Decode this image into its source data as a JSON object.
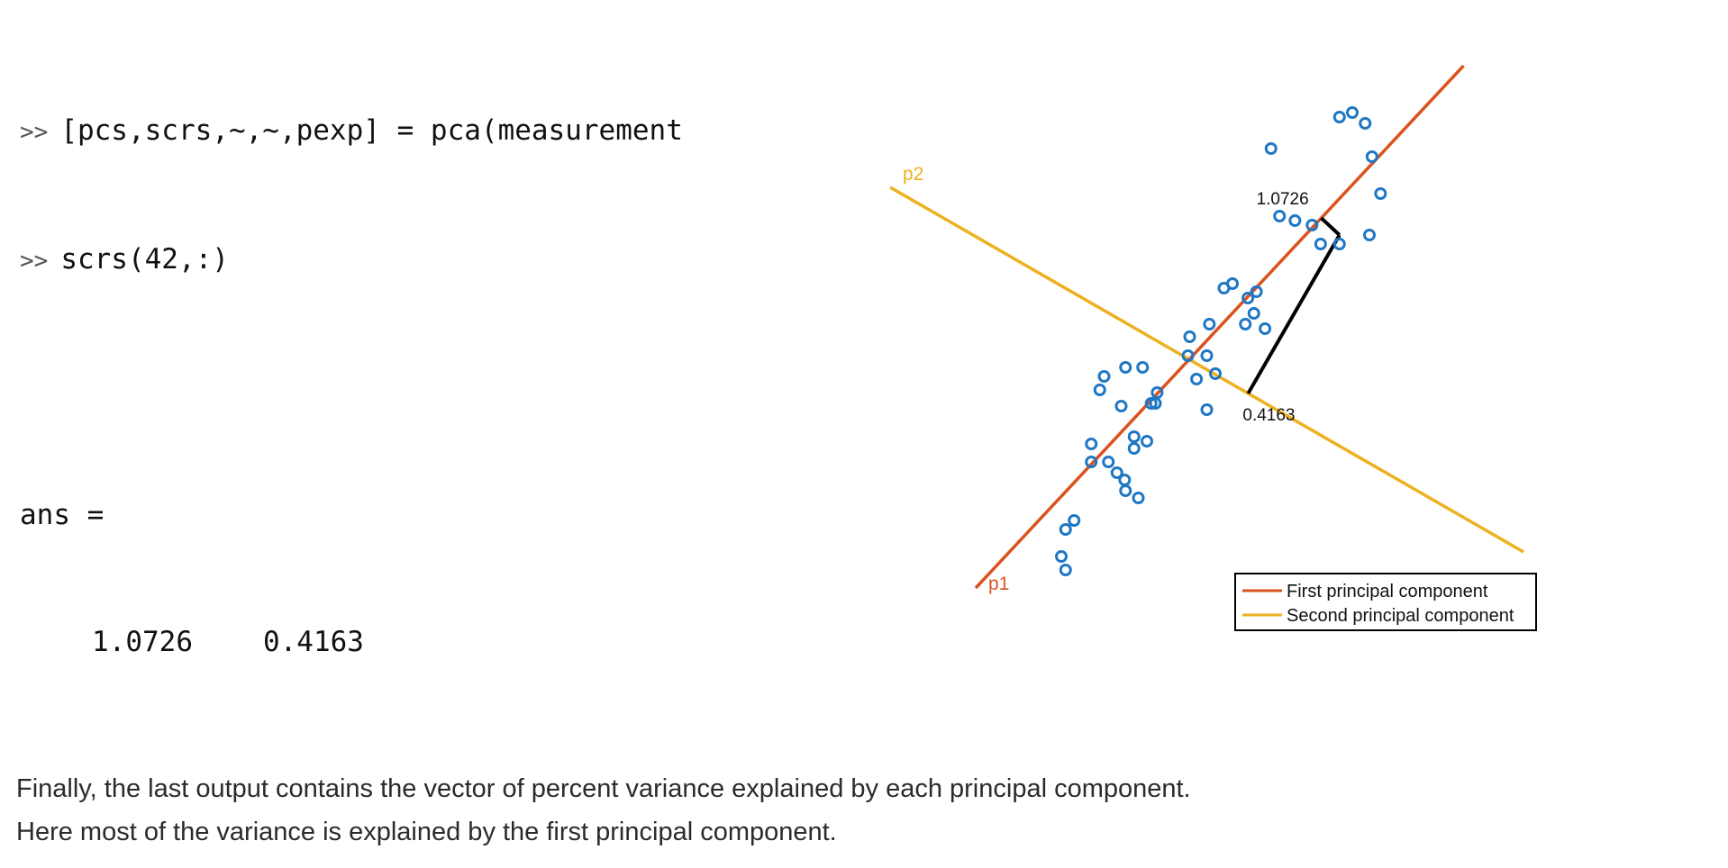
{
  "console": {
    "prompt": ">>",
    "line1": "[pcs,scrs,~,~,pexp] = pca(measurement",
    "line2": "scrs(42,:)",
    "ans_label": "ans =",
    "ans_values": [
      "1.0726",
      "0.4163"
    ]
  },
  "chart_data": {
    "type": "scatter",
    "title": "",
    "xlabel": "",
    "ylabel": "",
    "colors": {
      "points": "#1f77c4",
      "first_pc": "#d9531e",
      "second_pc": "#edb120",
      "projection": "#000000"
    },
    "axes_visible": false,
    "grid": false,
    "legend_position": "bottom-right",
    "series": [
      {
        "name": "First principal component",
        "kind": "line",
        "label": "p1",
        "x": [
          -2.6,
          3.1
        ],
        "y": [
          -2.5,
          3.3
        ]
      },
      {
        "name": "Second principal component",
        "kind": "line",
        "label": "p2",
        "x": [
          -3.6,
          3.8
        ],
        "y": [
          1.95,
          -2.1
        ]
      }
    ],
    "points": {
      "x": [
        1.65,
        1.8,
        1.95,
        0.85,
        2.03,
        2.13,
        0.95,
        1.13,
        1.33,
        2.0,
        1.65,
        1.43,
        0.3,
        0.4,
        0.68,
        0.58,
        0.65,
        0.55,
        0.78,
        0.13,
        -0.1,
        0.1,
        -0.12,
        -0.65,
        0.2,
        0.1,
        -1.1,
        -0.55,
        -1.15,
        -0.85,
        -0.6,
        -0.75,
        -0.95,
        -0.9,
        -0.75,
        -0.5,
        -0.7,
        -0.48,
        -0.02,
        -1.25,
        -1.25,
        -1.45,
        -1.6,
        -1.55,
        -0.86,
        -1.55,
        -0.85,
        -1.05
      ],
      "y": [
        2.73,
        2.78,
        2.66,
        2.38,
        2.29,
        1.88,
        1.63,
        1.58,
        1.53,
        1.42,
        1.32,
        1.32,
        0.83,
        0.88,
        0.79,
        0.72,
        0.55,
        0.43,
        0.38,
        0.43,
        0.29,
        0.08,
        0.08,
        -0.05,
        -0.12,
        -0.52,
        -0.15,
        -0.45,
        -0.3,
        -0.05,
        -0.87,
        -0.95,
        -1.22,
        -0.48,
        -0.82,
        -0.45,
        -1.5,
        -0.33,
        -0.18,
        -0.9,
        -1.1,
        -1.75,
        -2.15,
        -2.3,
        -1.3,
        -1.85,
        -1.42,
        -1.1
      ]
    },
    "highlight_point": {
      "x": 1.65,
      "y": 1.42
    },
    "projections": {
      "onto_p1": "1.0726",
      "onto_p2": "0.4163"
    }
  },
  "prose": {
    "line1": "Finally, the last output contains the vector of percent variance explained by each principal component.",
    "line2": "Here most of the variance is explained by the first principal component."
  }
}
